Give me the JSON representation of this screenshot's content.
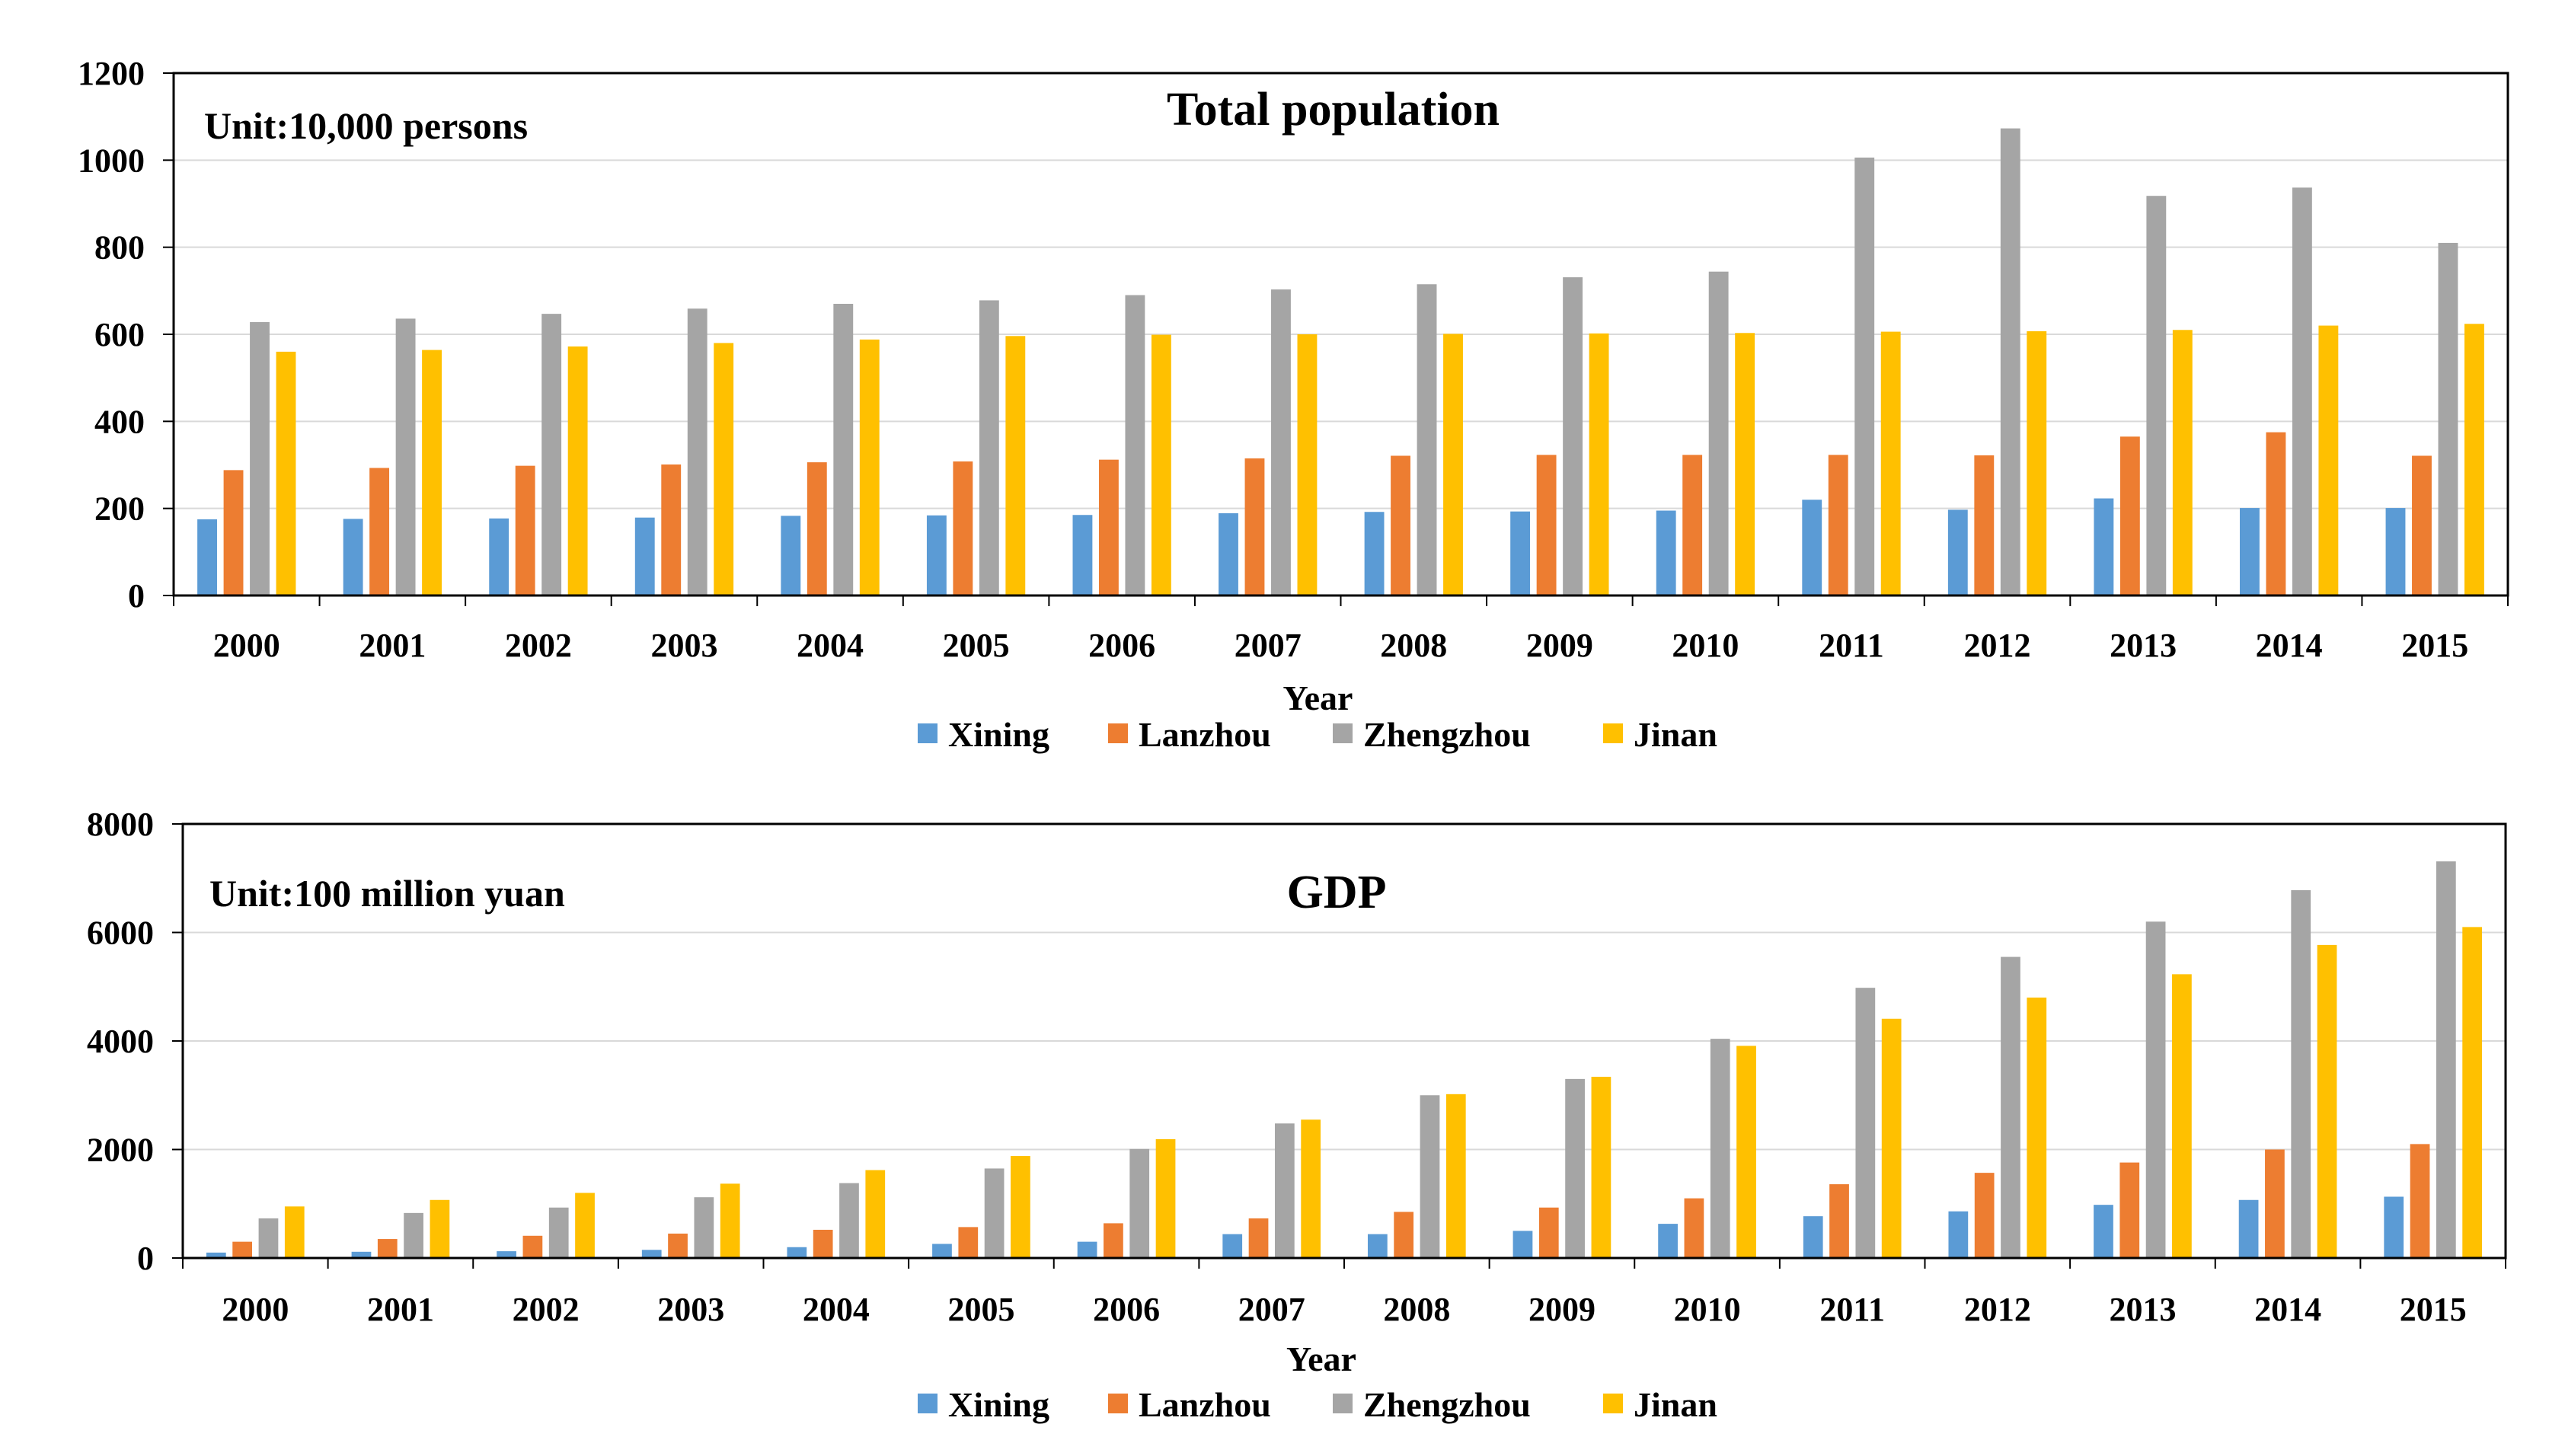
{
  "chart_data": [
    {
      "type": "bar",
      "title": "Total population",
      "unit": "Unit:10,000 persons",
      "xlabel": "Year",
      "ylabel": "",
      "ylim": [
        0,
        1200
      ],
      "yticks": [
        0,
        200,
        400,
        600,
        800,
        1000,
        1200
      ],
      "grid": true,
      "legend_position": "bottom",
      "categories": [
        "2000",
        "2001",
        "2002",
        "2003",
        "2004",
        "2005",
        "2006",
        "2007",
        "2008",
        "2009",
        "2010",
        "2011",
        "2012",
        "2013",
        "2014",
        "2015"
      ],
      "series": [
        {
          "name": "Xining",
          "color": "#5b9bd5",
          "values": [
            175,
            176,
            177,
            179,
            183,
            184,
            185,
            189,
            192,
            193,
            195,
            220,
            197,
            223,
            201,
            201
          ]
        },
        {
          "name": "Lanzhou",
          "color": "#ed7d31",
          "values": [
            288,
            293,
            298,
            301,
            306,
            308,
            312,
            315,
            321,
            323,
            323,
            323,
            322,
            365,
            375,
            321
          ]
        },
        {
          "name": "Zhengzhou",
          "color": "#a5a5a5",
          "values": [
            628,
            636,
            647,
            659,
            670,
            678,
            690,
            703,
            715,
            731,
            744,
            1006,
            1073,
            918,
            937,
            810
          ]
        },
        {
          "name": "Jinan",
          "color": "#ffc000",
          "values": [
            560,
            564,
            572,
            580,
            588,
            596,
            599,
            600,
            601,
            602,
            603,
            606,
            607,
            610,
            620,
            624
          ]
        }
      ]
    },
    {
      "type": "bar",
      "title": "GDP",
      "unit": "Unit:100 million yuan",
      "xlabel": "Year",
      "ylabel": "",
      "ylim": [
        0,
        8000
      ],
      "yticks": [
        0,
        2000,
        4000,
        6000,
        8000
      ],
      "grid": true,
      "legend_position": "bottom",
      "categories": [
        "2000",
        "2001",
        "2002",
        "2003",
        "2004",
        "2005",
        "2006",
        "2007",
        "2008",
        "2009",
        "2010",
        "2011",
        "2012",
        "2013",
        "2014",
        "2015"
      ],
      "series": [
        {
          "name": "Xining",
          "color": "#5b9bd5",
          "values": [
            100,
            115,
            125,
            150,
            200,
            260,
            300,
            440,
            440,
            500,
            630,
            770,
            860,
            980,
            1070,
            1130
          ]
        },
        {
          "name": "Lanzhou",
          "color": "#ed7d31",
          "values": [
            300,
            350,
            410,
            450,
            520,
            570,
            640,
            730,
            850,
            930,
            1100,
            1360,
            1570,
            1760,
            2000,
            2100
          ]
        },
        {
          "name": "Zhengzhou",
          "color": "#a5a5a5",
          "values": [
            730,
            830,
            930,
            1120,
            1380,
            1650,
            2010,
            2480,
            3000,
            3300,
            4040,
            4980,
            5550,
            6200,
            6780,
            7310
          ]
        },
        {
          "name": "Jinan",
          "color": "#ffc000",
          "values": [
            950,
            1070,
            1200,
            1370,
            1620,
            1880,
            2190,
            2550,
            3020,
            3340,
            3910,
            4410,
            4800,
            5230,
            5770,
            6100
          ]
        }
      ]
    }
  ]
}
